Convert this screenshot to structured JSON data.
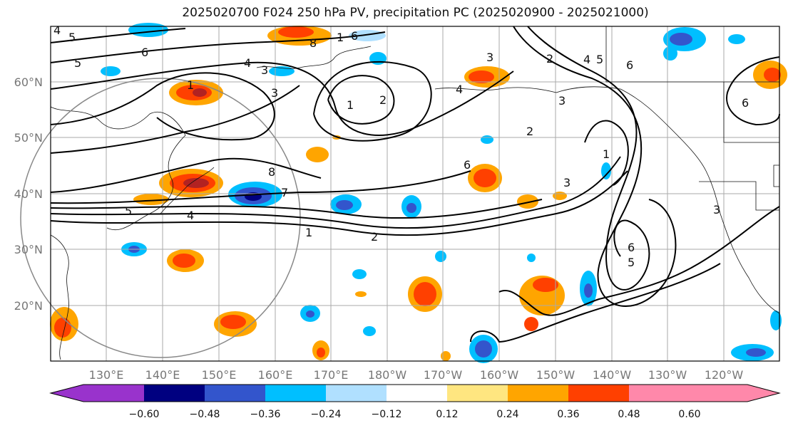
{
  "title": "2025020700 F024 250 hPa PV, precipitation PC (2025020900 - 2025021000)",
  "lat_labels": [
    "60°N",
    "50°N",
    "40°N",
    "30°N",
    "20°N"
  ],
  "lon_labels": [
    "130°E",
    "140°E",
    "150°E",
    "160°E",
    "170°E",
    "180°W",
    "170°W",
    "160°W",
    "150°W",
    "140°W",
    "130°W",
    "120°W"
  ],
  "colorbar": {
    "ticks": [
      "−0.60",
      "−0.48",
      "−0.36",
      "−0.24",
      "−0.12",
      "0.12",
      "0.24",
      "0.36",
      "0.48",
      "0.60"
    ],
    "colors": [
      "#9933cc",
      "#000080",
      "#3355cc",
      "#00bfff",
      "#b0e0ff",
      "#ffffff",
      "#ffe680",
      "#ffa500",
      "#ff4000",
      "#b22222",
      "#ff88aa"
    ]
  },
  "contour_labels": [
    "5",
    "6",
    "5",
    "4",
    "3",
    "1",
    "4",
    "8",
    "1",
    "6",
    "2",
    "2",
    "4",
    "5",
    "6",
    "3",
    "1",
    "2",
    "3",
    "6",
    "8",
    "7",
    "5",
    "4",
    "1",
    "2",
    "6",
    "3",
    "1",
    "3",
    "6",
    "5",
    "3",
    "4"
  ]
}
